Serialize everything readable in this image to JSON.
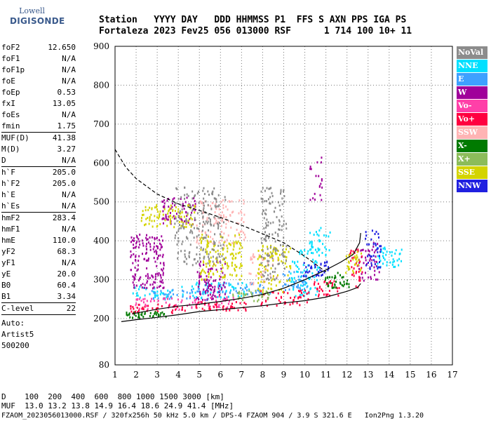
{
  "logo": {
    "line1": "Lowell",
    "line2": "DIGISONDE"
  },
  "header": {
    "labels": "Station   YYYY DAY   DDD HHMMSS P1  FFS S AXN PPS IGA PS",
    "values": "Fortaleza 2023 Fev25 056 013000 RSF      1 714 100 10+ 11"
  },
  "sidebar": {
    "group1": [
      {
        "k": "foF2",
        "v": "12.650"
      },
      {
        "k": "foF1",
        "v": "N/A"
      },
      {
        "k": "foF1p",
        "v": "N/A"
      },
      {
        "k": "foE",
        "v": "N/A"
      },
      {
        "k": "foEp",
        "v": "0.53"
      },
      {
        "k": "fxI",
        "v": "13.05"
      },
      {
        "k": "foEs",
        "v": "N/A"
      },
      {
        "k": "fmin",
        "v": "1.75"
      }
    ],
    "group2": [
      {
        "k": "MUF(D)",
        "v": "41.38"
      },
      {
        "k": "M(D)",
        "v": "3.27"
      },
      {
        "k": "D",
        "v": "N/A"
      }
    ],
    "group3": [
      {
        "k": "h`F",
        "v": "205.0"
      },
      {
        "k": "h`F2",
        "v": "205.0"
      },
      {
        "k": "h`E",
        "v": "N/A"
      },
      {
        "k": "h`Es",
        "v": "N/A"
      }
    ],
    "group4": [
      {
        "k": "hmF2",
        "v": "283.4"
      },
      {
        "k": "hmF1",
        "v": "N/A"
      },
      {
        "k": "hmE",
        "v": "110.0"
      },
      {
        "k": "yF2",
        "v": "68.3"
      },
      {
        "k": "yF1",
        "v": "N/A"
      },
      {
        "k": "yE",
        "v": "20.0"
      },
      {
        "k": "B0",
        "v": "60.4"
      },
      {
        "k": "B1",
        "v": "3.34"
      }
    ],
    "group5": [
      {
        "k": "C-level",
        "v": "22"
      }
    ],
    "auto": [
      "Auto:",
      "Artist5",
      "500200"
    ]
  },
  "footer": {
    "line1": "D    100  200  400  600  800 1000 1500 3000 [km]",
    "line2": "MUF  13.0 13.2 13.8 14.9 16.4 18.6 24.9 41.4 [MHz]",
    "line3": "FZAOM_2023056013000.RSF / 320fx256h 50 kHz 5.0 km / DPS-4 FZAOM 904 / 3.9 S 321.6 E   Ion2Png 1.3.20"
  },
  "legend": [
    {
      "label": "NoVal",
      "color": "#8c8c8c"
    },
    {
      "label": "NNE",
      "color": "#00e0ff"
    },
    {
      "label": "E",
      "color": "#3ea0ff"
    },
    {
      "label": "W",
      "color": "#a0009a"
    },
    {
      "label": "Vo-",
      "color": "#ff40a8"
    },
    {
      "label": "Vo+",
      "color": "#ff0040"
    },
    {
      "label": "SSW",
      "color": "#ffb4b4"
    },
    {
      "label": "X-",
      "color": "#007a00"
    },
    {
      "label": "X+",
      "color": "#8cbc5a"
    },
    {
      "label": "SSE",
      "color": "#d4d400"
    },
    {
      "label": "NNW",
      "color": "#2020e0"
    }
  ],
  "chart_data": {
    "type": "scatter",
    "x_ticks": [
      1,
      2,
      3,
      4,
      5,
      6,
      7,
      8,
      9,
      10,
      11,
      12,
      13,
      14,
      15,
      16,
      17
    ],
    "y_ticks": [
      80,
      200,
      300,
      400,
      500,
      600,
      700,
      800,
      900
    ],
    "xlim": [
      1,
      17
    ],
    "ylim": [
      80,
      900
    ],
    "grid": true,
    "series": [
      {
        "name": "NNE",
        "clusters": [
          [
            3,
            270,
            1.3,
            15,
            0.9
          ],
          [
            6,
            275,
            1.4,
            20,
            1.0
          ],
          [
            10,
            320,
            0.7,
            60,
            1.0
          ],
          [
            10.7,
            400,
            0.5,
            40,
            0.9
          ],
          [
            14,
            360,
            0.6,
            25,
            1.0
          ]
        ]
      },
      {
        "name": "E",
        "clusters": [
          [
            4,
            265,
            1.4,
            15,
            1.0
          ],
          [
            7,
            280,
            1.4,
            15,
            1.0
          ],
          [
            9.5,
            300,
            0.6,
            25,
            0.9
          ]
        ]
      },
      {
        "name": "W",
        "clusters": [
          [
            2.5,
            350,
            0.8,
            70,
            1.4
          ],
          [
            4,
            480,
            0.8,
            35,
            1.2
          ],
          [
            5.5,
            300,
            0.7,
            50,
            1.3
          ],
          [
            10.5,
            560,
            0.3,
            60,
            0.5
          ],
          [
            13,
            350,
            0.5,
            50,
            0.9
          ]
        ]
      },
      {
        "name": "Vo-",
        "clusters": [
          [
            3,
            240,
            1.3,
            15,
            1.0
          ],
          [
            5.5,
            245,
            1.2,
            15,
            1.0
          ]
        ]
      },
      {
        "name": "Vo+",
        "clusters": [
          [
            3,
            228,
            1.3,
            12,
            1.0
          ],
          [
            6,
            235,
            1.2,
            12,
            1.0
          ],
          [
            9,
            255,
            1.2,
            20,
            1.0
          ],
          [
            11,
            280,
            0.6,
            20,
            0.9
          ],
          [
            12.4,
            330,
            0.3,
            50,
            0.8
          ]
        ]
      },
      {
        "name": "SSW",
        "clusters": [
          [
            6,
            450,
            1.2,
            60,
            0.8
          ],
          [
            8,
            330,
            0.7,
            40,
            0.8
          ]
        ]
      },
      {
        "name": "X-",
        "clusters": [
          [
            2.5,
            212,
            1.0,
            8,
            1.0
          ],
          [
            11.5,
            300,
            0.6,
            20,
            0.9
          ]
        ]
      },
      {
        "name": "X+",
        "clusters": [
          [
            7.5,
            260,
            1.0,
            15,
            0.9
          ]
        ]
      },
      {
        "name": "SSE",
        "clusters": [
          [
            3.5,
            465,
            1.3,
            30,
            1.2
          ],
          [
            6,
            360,
            1.0,
            60,
            1.1
          ],
          [
            8.5,
            330,
            0.8,
            60,
            1.0
          ],
          [
            12.3,
            350,
            0.4,
            30,
            0.8
          ]
        ]
      },
      {
        "name": "NNW",
        "clusters": [
          [
            10.5,
            330,
            0.6,
            20,
            0.9
          ],
          [
            13.2,
            380,
            0.4,
            50,
            1.0
          ]
        ]
      },
      {
        "name": "NoVal",
        "clusters": [
          [
            8.5,
            420,
            0.6,
            120,
            0.9
          ],
          [
            5,
            440,
            1.2,
            100,
            0.8
          ]
        ]
      }
    ],
    "curves": [
      {
        "style": "dashed",
        "points": [
          [
            1,
            635
          ],
          [
            1.5,
            590
          ],
          [
            2,
            560
          ],
          [
            3,
            520
          ],
          [
            4,
            495
          ],
          [
            5,
            478
          ],
          [
            6,
            460
          ],
          [
            7,
            440
          ],
          [
            8,
            418
          ],
          [
            9,
            395
          ],
          [
            10,
            360
          ],
          [
            10.5,
            340
          ],
          [
            11,
            320
          ]
        ]
      },
      {
        "style": "solid",
        "points": [
          [
            1.3,
            192
          ],
          [
            2,
            197
          ],
          [
            3,
            203
          ],
          [
            4,
            210
          ],
          [
            5,
            218
          ],
          [
            6,
            223
          ],
          [
            7,
            228
          ],
          [
            8,
            233
          ],
          [
            9,
            240
          ],
          [
            10,
            246
          ],
          [
            11,
            255
          ],
          [
            12,
            270
          ],
          [
            12.5,
            280
          ],
          [
            12.65,
            290
          ]
        ]
      },
      {
        "style": "solid",
        "points": [
          [
            1.8,
            212
          ],
          [
            3,
            224
          ],
          [
            4,
            232
          ],
          [
            5,
            237
          ],
          [
            6,
            244
          ],
          [
            7,
            252
          ],
          [
            8,
            262
          ],
          [
            9,
            278
          ],
          [
            10,
            300
          ],
          [
            11,
            325
          ],
          [
            11.7,
            345
          ],
          [
            12.3,
            365
          ],
          [
            12.6,
            395
          ],
          [
            12.65,
            420
          ]
        ]
      }
    ]
  }
}
